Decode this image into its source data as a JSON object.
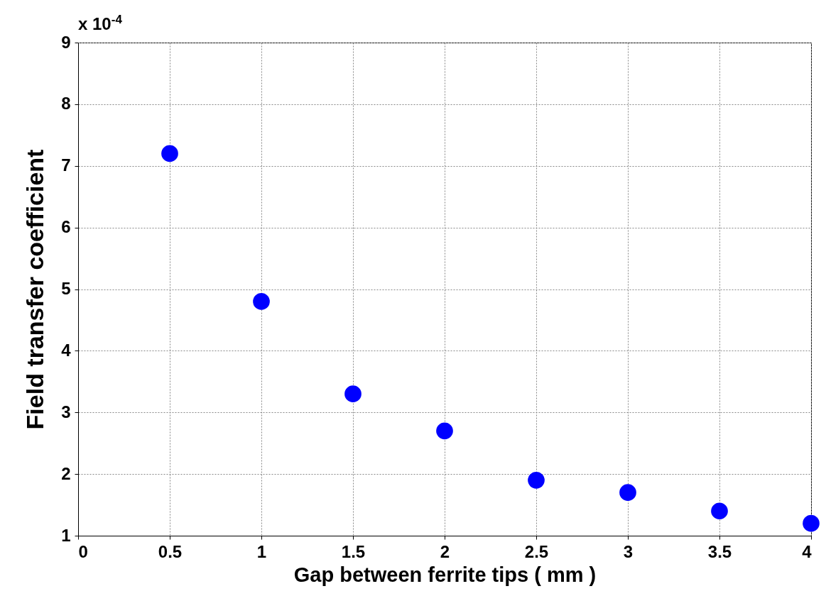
{
  "chart_data": {
    "type": "scatter",
    "xlabel": "Gap between ferrite tips ( mm )",
    "ylabel": "Field transfer coefficient",
    "annotations": [
      "x 10$^{-4}$"
    ],
    "x": [
      0.5,
      1,
      1.5,
      2,
      2.5,
      3,
      3.5,
      4
    ],
    "series": [
      {
        "color": "#0000ff",
        "values": [
          7.2,
          4.8,
          3.3,
          2.7,
          1.9,
          1.7,
          1.4,
          1.2
        ]
      }
    ],
    "xlim": [
      0,
      4
    ],
    "xticks": [
      0,
      0.5,
      1,
      1.5,
      2,
      2.5,
      3,
      3.5,
      4
    ],
    "ylim": [
      1,
      9
    ],
    "yticks": [
      1,
      2,
      3,
      4,
      5,
      6,
      7,
      8,
      9
    ],
    "grid": true,
    "marker": "circle"
  }
}
